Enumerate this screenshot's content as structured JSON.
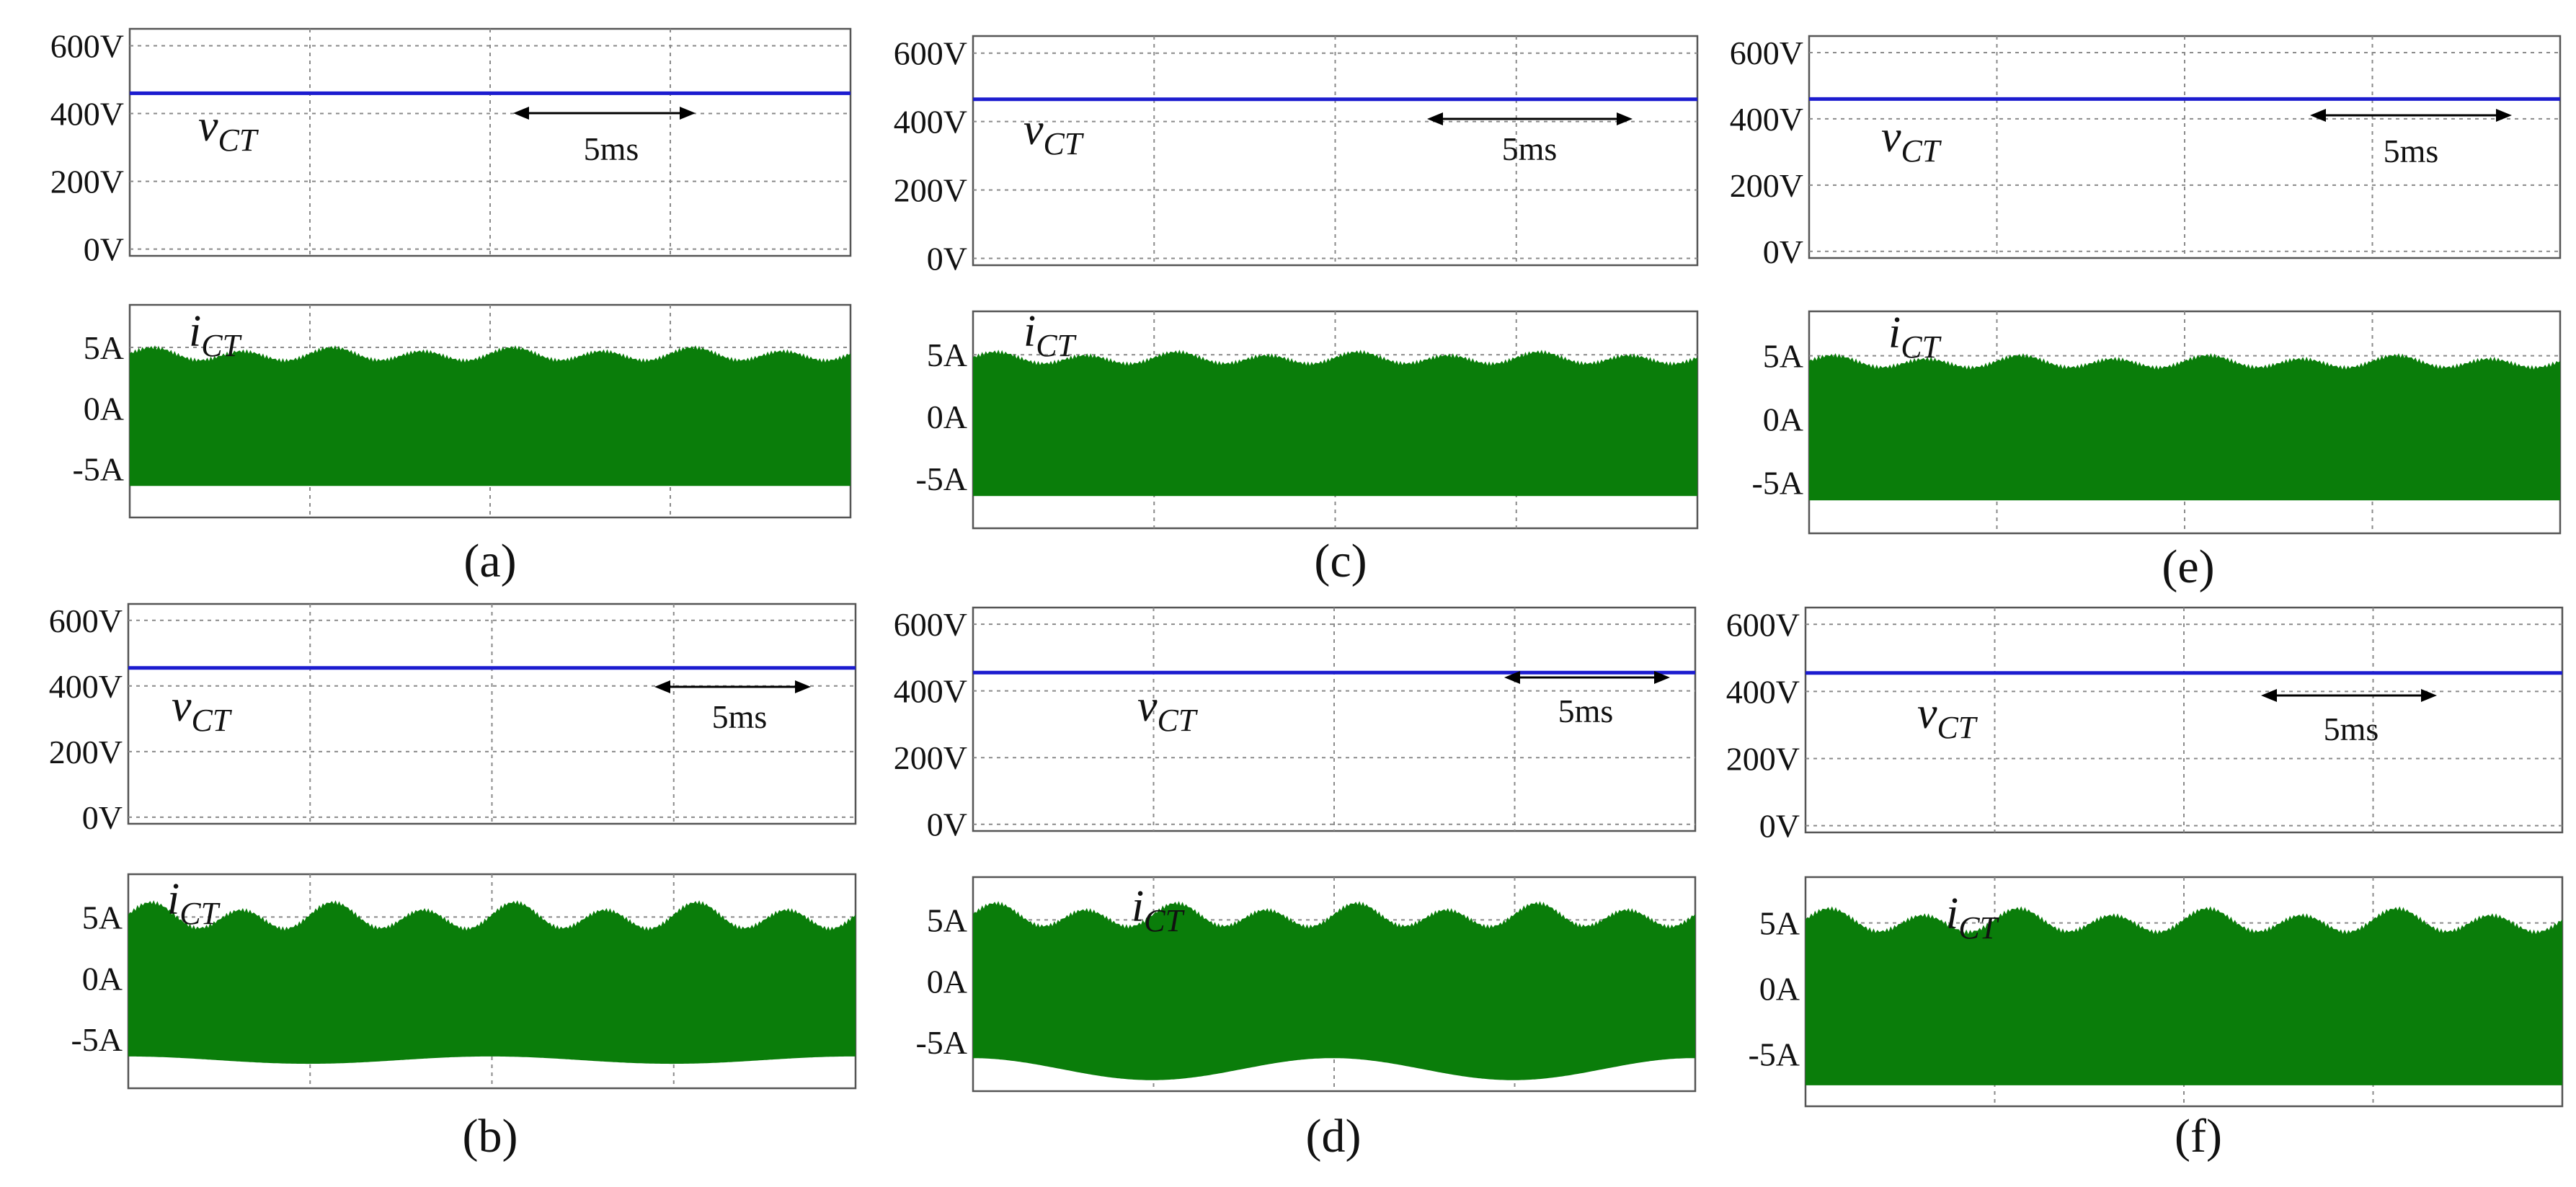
{
  "figure_title": "Six scope captures of v_CT and i_CT waveforms, panels (a)-(f)",
  "colors": {
    "voltage_trace": "#1c1ccf",
    "current_band": "#0a7d0a",
    "grid": "#8a8a8a",
    "frame": "#555555"
  },
  "chart_data": [
    {
      "panel": "a",
      "caption": "(a)",
      "type": "line",
      "time_scale_label": "5ms",
      "voltage": {
        "symbol": "v",
        "subscript": "CT",
        "tick_labels": [
          "600V",
          "400V",
          "200V",
          "0V"
        ],
        "ylim": [
          -20,
          650
        ],
        "grid_values": [
          0,
          200,
          400,
          600
        ],
        "value": 460
      },
      "current": {
        "symbol": "i",
        "subscript": "CT",
        "tick_labels": [
          "5A",
          "0A",
          "-5A"
        ],
        "ylim": [
          -9,
          8.5
        ],
        "grid_values": [
          -5,
          0,
          5
        ],
        "upper_envelope": {
          "mean": 4.4,
          "ripple": 0.9,
          "cycles": 8
        },
        "lower_envelope": {
          "mean": -6.4,
          "swing": 0.0
        }
      }
    },
    {
      "panel": "b",
      "caption": "(b)",
      "type": "line",
      "time_scale_label": "5ms",
      "voltage": {
        "symbol": "v",
        "subscript": "CT",
        "tick_labels": [
          "600V",
          "400V",
          "200V",
          "0V"
        ],
        "ylim": [
          -20,
          650
        ],
        "grid_values": [
          0,
          200,
          400,
          600
        ],
        "value": 455
      },
      "current": {
        "symbol": "i",
        "subscript": "CT",
        "tick_labels": [
          "5A",
          "0A",
          "-5A"
        ],
        "ylim": [
          -9,
          8.5
        ],
        "grid_values": [
          -5,
          0,
          5
        ],
        "upper_envelope": {
          "mean": 5.0,
          "ripple": 1.8,
          "cycles": 8
        },
        "lower_envelope": {
          "mean": -6.7,
          "swing": 0.3
        }
      }
    },
    {
      "panel": "c",
      "caption": "(c)",
      "type": "line",
      "time_scale_label": "5ms",
      "voltage": {
        "symbol": "v",
        "subscript": "CT",
        "tick_labels": [
          "600V",
          "400V",
          "200V",
          "0V"
        ],
        "ylim": [
          -20,
          650
        ],
        "grid_values": [
          0,
          200,
          400,
          600
        ],
        "value": 465
      },
      "current": {
        "symbol": "i",
        "subscript": "CT",
        "tick_labels": [
          "5A",
          "0A",
          "-5A"
        ],
        "ylim": [
          -9,
          8.5
        ],
        "grid_values": [
          -5,
          0,
          5
        ],
        "upper_envelope": {
          "mean": 4.7,
          "ripple": 0.8,
          "cycles": 8
        },
        "lower_envelope": {
          "mean": -6.4,
          "swing": 0.0
        }
      }
    },
    {
      "panel": "d",
      "caption": "(d)",
      "type": "line",
      "time_scale_label": "5ms",
      "voltage": {
        "symbol": "v",
        "subscript": "CT",
        "tick_labels": [
          "600V",
          "400V",
          "200V",
          "0V"
        ],
        "ylim": [
          -20,
          650
        ],
        "grid_values": [
          0,
          200,
          400,
          600
        ],
        "value": 455
      },
      "current": {
        "symbol": "i",
        "subscript": "CT",
        "tick_labels": [
          "5A",
          "0A",
          "-5A"
        ],
        "ylim": [
          -9,
          8.5
        ],
        "grid_values": [
          -5,
          0,
          5
        ],
        "upper_envelope": {
          "mean": 5.3,
          "ripple": 1.6,
          "cycles": 8
        },
        "lower_envelope": {
          "mean": -7.2,
          "swing": 0.9
        }
      }
    },
    {
      "panel": "e",
      "caption": "(e)",
      "type": "line",
      "time_scale_label": "5ms",
      "voltage": {
        "symbol": "v",
        "subscript": "CT",
        "tick_labels": [
          "600V",
          "400V",
          "200V",
          "0V"
        ],
        "ylim": [
          -20,
          650
        ],
        "grid_values": [
          0,
          200,
          400,
          600
        ],
        "value": 460
      },
      "current": {
        "symbol": "i",
        "subscript": "CT",
        "tick_labels": [
          "5A",
          "0A",
          "-5A"
        ],
        "ylim": [
          -9,
          8.5
        ],
        "grid_values": [
          -5,
          0,
          5
        ],
        "upper_envelope": {
          "mean": 4.5,
          "ripple": 0.8,
          "cycles": 8
        },
        "lower_envelope": {
          "mean": -6.4,
          "swing": 0.0
        }
      }
    },
    {
      "panel": "f",
      "caption": "(f)",
      "type": "line",
      "time_scale_label": "5ms",
      "voltage": {
        "symbol": "v",
        "subscript": "CT",
        "tick_labels": [
          "600V",
          "400V",
          "200V",
          "0V"
        ],
        "ylim": [
          -20,
          650
        ],
        "grid_values": [
          0,
          200,
          400,
          600
        ],
        "value": 455
      },
      "current": {
        "symbol": "i",
        "subscript": "CT",
        "tick_labels": [
          "5A",
          "0A",
          "-5A"
        ],
        "ylim": [
          -9,
          8.5
        ],
        "grid_values": [
          -5,
          0,
          5
        ],
        "upper_envelope": {
          "mean": 5.1,
          "ripple": 1.5,
          "cycles": 8
        },
        "lower_envelope": {
          "mean": -7.4,
          "swing": 0.0
        }
      }
    }
  ]
}
